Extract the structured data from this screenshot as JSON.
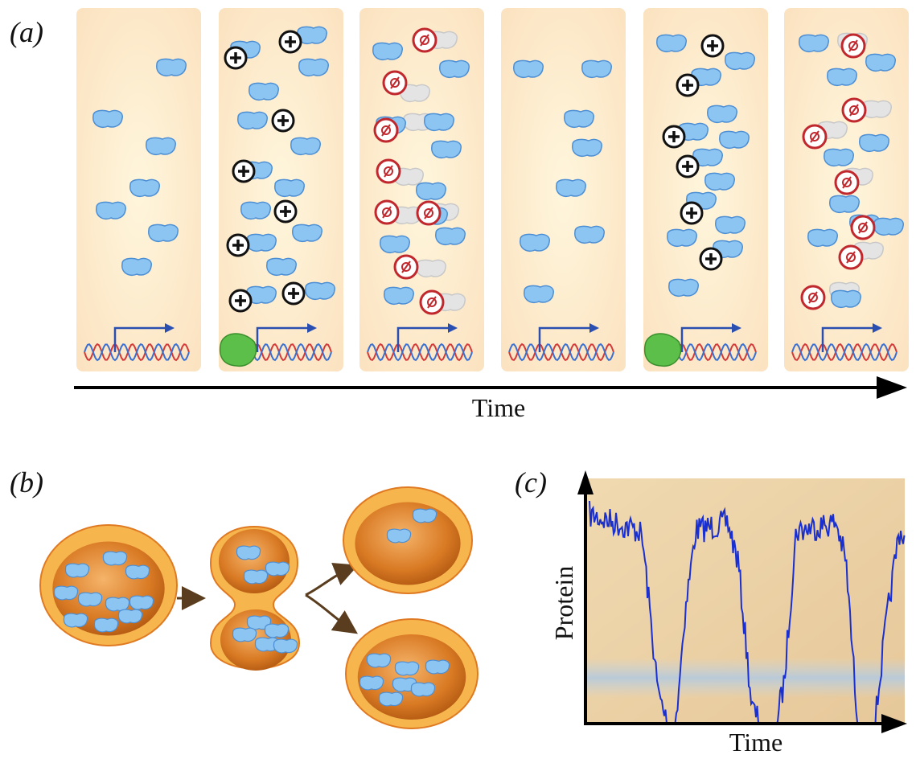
{
  "panel_a": {
    "label": "(a)",
    "axis_label": "Time"
  },
  "panel_b": {
    "label": "(b)"
  },
  "panel_c": {
    "label": "(c)",
    "x_label": "Time",
    "y_label": "Protein"
  }
}
